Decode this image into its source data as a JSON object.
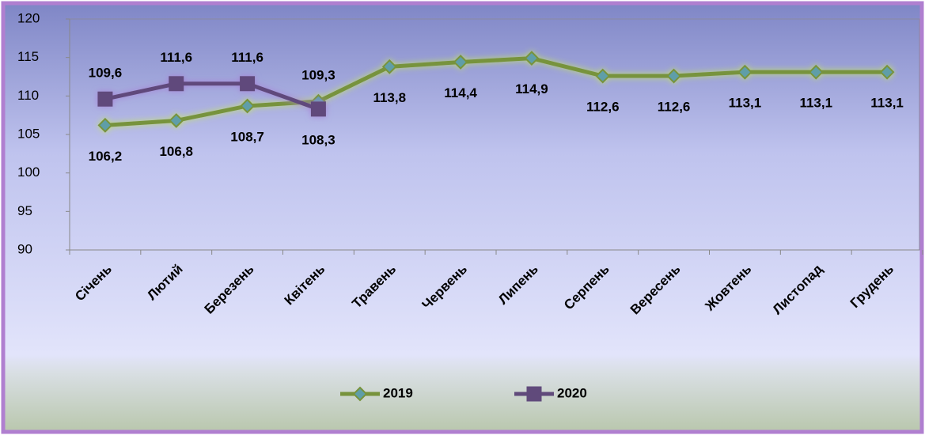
{
  "chart_data": {
    "type": "line",
    "categories": [
      "Січень",
      "Лютий",
      "Березень",
      "Квітень",
      "Травень",
      "Червень",
      "Липень",
      "Серпень",
      "Вересень",
      "Жовтень",
      "Листопад",
      "Грудень"
    ],
    "series": [
      {
        "name": "2019",
        "color": "#77933c",
        "marker": "diamond",
        "marker_color": "#5f9ea8",
        "values": [
          106.2,
          106.8,
          108.7,
          109.3,
          113.8,
          114.4,
          114.9,
          112.6,
          112.6,
          113.1,
          113.1,
          113.1
        ],
        "value_labels": [
          "106,2",
          "106,8",
          "108,7",
          "109,3",
          "113,8",
          "114,4",
          "114,9",
          "112,6",
          "112,6",
          "113,1",
          "113,1",
          "113,1"
        ]
      },
      {
        "name": "2020",
        "color": "#604a7b",
        "marker": "square",
        "marker_color": "#604a7b",
        "values": [
          109.6,
          111.6,
          111.6,
          108.3,
          null,
          null,
          null,
          null,
          null,
          null,
          null,
          null
        ],
        "value_labels": [
          "109,6",
          "111,6",
          "111,6",
          "108,3",
          null,
          null,
          null,
          null,
          null,
          null,
          null,
          null
        ]
      }
    ],
    "ylim": [
      90,
      120
    ],
    "yticks": [
      90,
      95,
      100,
      105,
      110,
      115,
      120
    ],
    "legend": "bottom"
  }
}
